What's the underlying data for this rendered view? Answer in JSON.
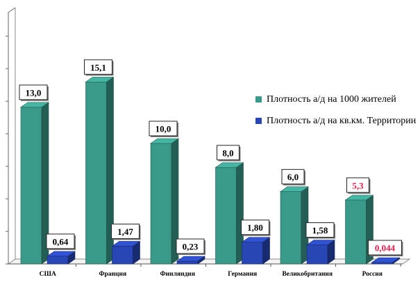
{
  "chart_data": {
    "type": "bar",
    "categories": [
      "США",
      "Франция",
      "Финляндия",
      "Германия",
      "Великобритания",
      "Россия"
    ],
    "series": [
      {
        "name": "Плотность а/д на 1000 жителей",
        "values": [
          13.0,
          15.1,
          10.0,
          8.0,
          6.0,
          5.3
        ],
        "labels": [
          "13,0",
          "15,1",
          "10,0",
          "8,0",
          "6,0",
          "5,3"
        ],
        "color": "#3a9a8a"
      },
      {
        "name": "Плотность а/д на кв.км. Территории",
        "values": [
          0.64,
          1.47,
          0.23,
          1.8,
          1.58,
          0.044
        ],
        "labels": [
          "0,64",
          "1,47",
          "0,23",
          "1,80",
          "1,58",
          "0,044"
        ],
        "color": "#2846b4"
      }
    ],
    "highlight_category": "Россия",
    "highlight_label_color": "#e0204a",
    "grid": false,
    "legend_position": "right"
  }
}
